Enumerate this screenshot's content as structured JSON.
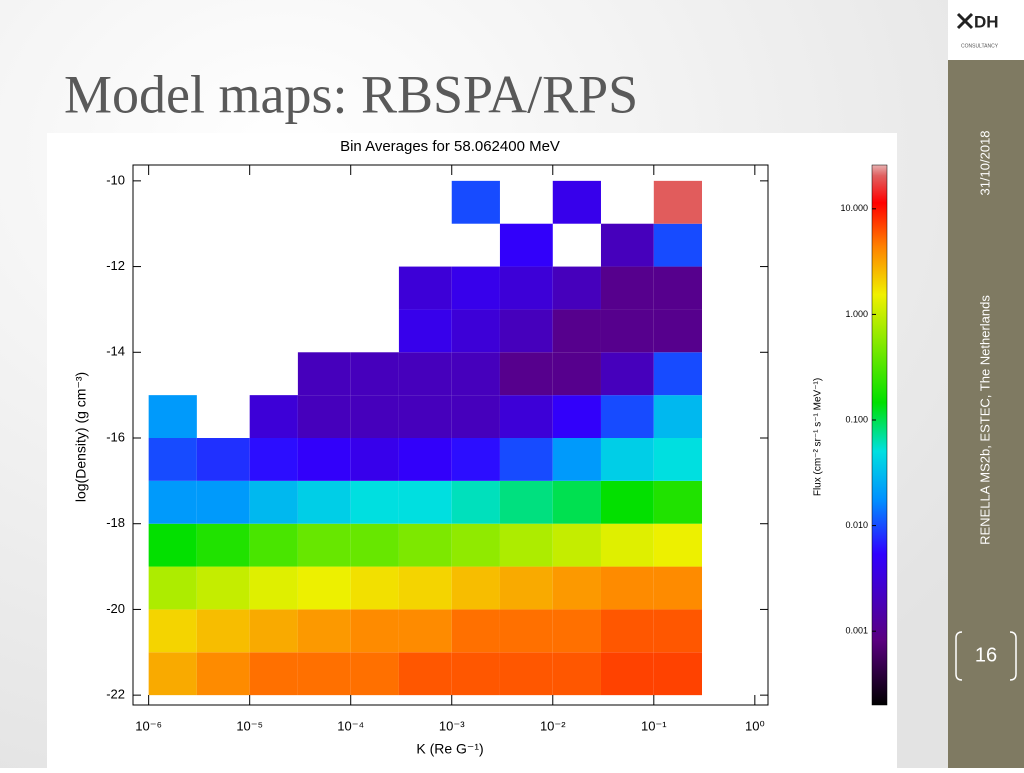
{
  "slide": {
    "title": "Model maps: RBSPA/RPS",
    "date": "31/10/2018",
    "event": "RENELLA MS2b, ESTEC, The Netherlands",
    "page": "16",
    "logo": {
      "mark": "DH",
      "sub": "CONSULTANCY"
    }
  },
  "chart_data": {
    "type": "heatmap",
    "title": "Bin Averages for 58.062400 MeV",
    "x_label": "K (Re G⁻¹)",
    "y_label": "log(Density) (g cm⁻³)",
    "colorbar_label": "Flux (cm⁻² sr⁻¹ s⁻¹ MeV⁻¹)",
    "x_log": true,
    "xlim": [
      7e-07,
      1.35
    ],
    "xticks": [
      {
        "value": 1e-06,
        "label": "10⁻⁶"
      },
      {
        "value": 1e-05,
        "label": "10⁻⁵"
      },
      {
        "value": 0.0001,
        "label": "10⁻⁴"
      },
      {
        "value": 0.001,
        "label": "10⁻³"
      },
      {
        "value": 0.01,
        "label": "10⁻²"
      },
      {
        "value": 0.1,
        "label": "10⁻¹"
      },
      {
        "value": 1,
        "label": "10⁰"
      }
    ],
    "ylim": [
      -22.23,
      -9.63
    ],
    "yticks": [
      -22,
      -20,
      -18,
      -16,
      -14,
      -12,
      -10
    ],
    "x_edges": [
      1e-06,
      3e-06,
      1e-05,
      3e-05,
      0.0001,
      0.0003,
      0.001,
      0.003,
      0.01,
      0.03,
      0.1,
      0.3
    ],
    "y_edges": [
      -22,
      -21,
      -20,
      -19,
      -18,
      -17,
      -16,
      -15,
      -14,
      -13,
      -12,
      -11,
      -10
    ],
    "z": [
      [
        3,
        4,
        5,
        5,
        5,
        6,
        6,
        6,
        6,
        7,
        7
      ],
      [
        2,
        2.5,
        3,
        3.5,
        4,
        4,
        5,
        5,
        5,
        6,
        6
      ],
      [
        0.8,
        1,
        1.3,
        1.5,
        1.8,
        2,
        2.5,
        3,
        3.5,
        4,
        4
      ],
      [
        0.15,
        0.2,
        0.3,
        0.4,
        0.4,
        0.5,
        0.6,
        0.8,
        1,
        1.3,
        1.5
      ],
      [
        0.02,
        0.02,
        0.03,
        0.04,
        0.05,
        0.05,
        0.06,
        0.08,
        0.1,
        0.15,
        0.2
      ],
      [
        0.01,
        0.008,
        0.006,
        0.005,
        0.004,
        0.005,
        0.006,
        0.01,
        0.02,
        0.04,
        0.05
      ],
      [
        0.02,
        null,
        0.003,
        0.002,
        0.002,
        0.002,
        0.002,
        0.003,
        0.005,
        0.01,
        0.03
      ],
      [
        null,
        null,
        null,
        0.002,
        0.002,
        0.002,
        0.002,
        0.001,
        0.001,
        0.002,
        0.01
      ],
      [
        null,
        null,
        null,
        null,
        null,
        0.004,
        0.003,
        0.002,
        0.001,
        0.001,
        0.001
      ],
      [
        null,
        null,
        null,
        null,
        null,
        0.003,
        0.004,
        0.003,
        0.002,
        0.001,
        0.001
      ],
      [
        null,
        null,
        null,
        null,
        null,
        null,
        null,
        0.005,
        null,
        0.002,
        0.01
      ],
      [
        null,
        null,
        null,
        null,
        null,
        null,
        0.01,
        null,
        0.004,
        null,
        20
      ]
    ],
    "colorbar_log": true,
    "clim": [
      0.0002,
      26
    ],
    "cticks": [
      {
        "value": 0.001,
        "label": "0.001"
      },
      {
        "value": 0.01,
        "label": "0.010"
      },
      {
        "value": 0.1,
        "label": "0.100"
      },
      {
        "value": 1,
        "label": "1.000"
      },
      {
        "value": 10,
        "label": "10.000"
      }
    ]
  }
}
